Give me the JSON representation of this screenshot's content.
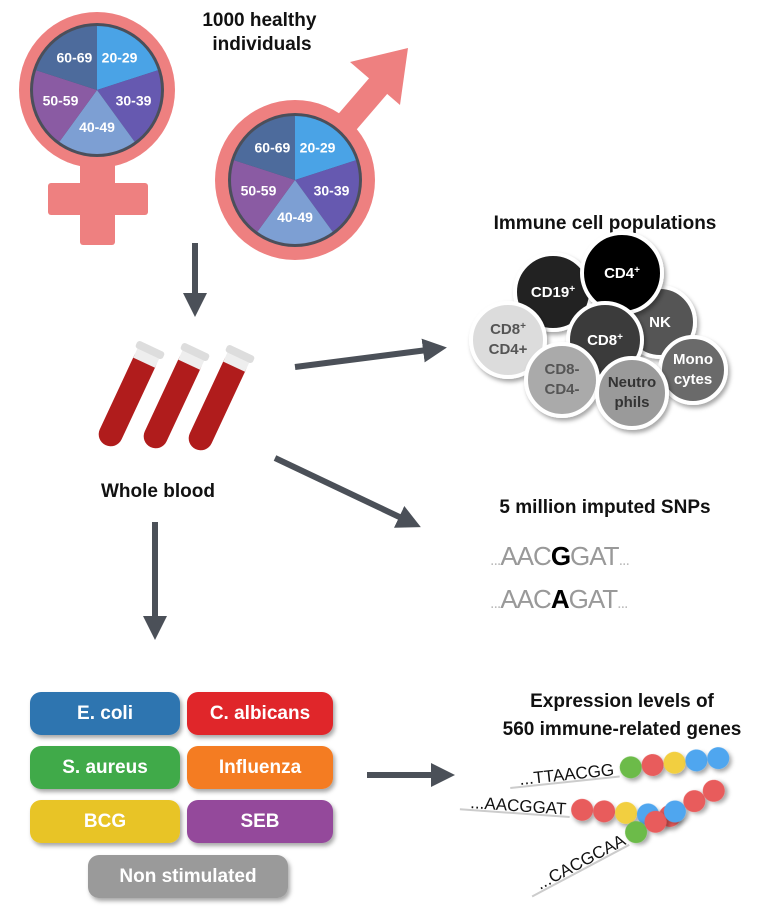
{
  "cohort": {
    "title_line1": "1000 healthy individuals",
    "title_line2": "",
    "age_groups": [
      {
        "label": "20-29",
        "color": "#4aa3e6"
      },
      {
        "label": "30-39",
        "color": "#6659b0"
      },
      {
        "label": "40-49",
        "color": "#7d9fd3"
      },
      {
        "label": "50-59",
        "color": "#8a5ba3"
      },
      {
        "label": "60-69",
        "color": "#4d6b9c"
      }
    ],
    "symbol_color": "#ee8080"
  },
  "blood": {
    "label": "Whole blood"
  },
  "cells": {
    "title": "Immune cell populations",
    "items": [
      {
        "l1": "CD19",
        "sup": "+",
        "l2": "",
        "fill": "#222",
        "text": "#fff"
      },
      {
        "l1": "NK",
        "sup": "",
        "l2": "",
        "fill": "#555",
        "text": "#fff"
      },
      {
        "l1": "CD4",
        "sup": "+",
        "l2": "",
        "fill": "#000",
        "text": "#fff"
      },
      {
        "l1": "CD8",
        "sup": "+",
        "l2": "CD4+",
        "fill": "#dcdcdc",
        "text": "#555"
      },
      {
        "l1": "CD8",
        "sup": "+",
        "l2": "",
        "fill": "#3a3a3a",
        "text": "#fff"
      },
      {
        "l1": "Mono",
        "sup": "",
        "l2": "cytes",
        "fill": "#6a6a6a",
        "text": "#fff"
      },
      {
        "l1": "CD8-",
        "sup": "",
        "l2": "CD4-",
        "fill": "#aaa",
        "text": "#555"
      },
      {
        "l1": "Neutro",
        "sup": "",
        "l2": "phils",
        "fill": "#9a9a9a",
        "text": "#333"
      }
    ]
  },
  "snps": {
    "title": "5 million imputed SNPs",
    "seq1": {
      "pre": "AAC",
      "alt": "G",
      "post": "GAT"
    },
    "seq2": {
      "pre": "AAC",
      "alt": "A",
      "post": "GAT"
    },
    "dots": "..."
  },
  "stimuli": [
    {
      "label": "E. coli",
      "color": "#2f74b0"
    },
    {
      "label": "C. albicans",
      "color": "#e0262a"
    },
    {
      "label": "S. aureus",
      "color": "#3faa48"
    },
    {
      "label": "Influenza",
      "color": "#f47b20"
    },
    {
      "label": "BCG",
      "color": "#e8c428"
    },
    {
      "label": "SEB",
      "color": "#94499b"
    },
    {
      "label": "Non stimulated",
      "color": "#9a9a9a"
    }
  ],
  "expression": {
    "title_line1": "Expression levels of",
    "title_line2": "560 immune-related genes",
    "strands": [
      {
        "seq": "...TTAACGG",
        "beads": [
          "#6cbb48",
          "#e85c5c",
          "#f2cf3f",
          "#4fa6ef",
          "#4fa6ef"
        ]
      },
      {
        "seq": "...AACGGAT",
        "beads": [
          "#e85c5c",
          "#e85c5c",
          "#f2cf3f",
          "#4fa6ef",
          "#e85c5c"
        ]
      },
      {
        "seq": "...CACGCAA",
        "beads": [
          "#6cbb48",
          "#e85c5c",
          "#4fa6ef",
          "#e85c5c",
          "#e85c5c"
        ]
      }
    ]
  }
}
